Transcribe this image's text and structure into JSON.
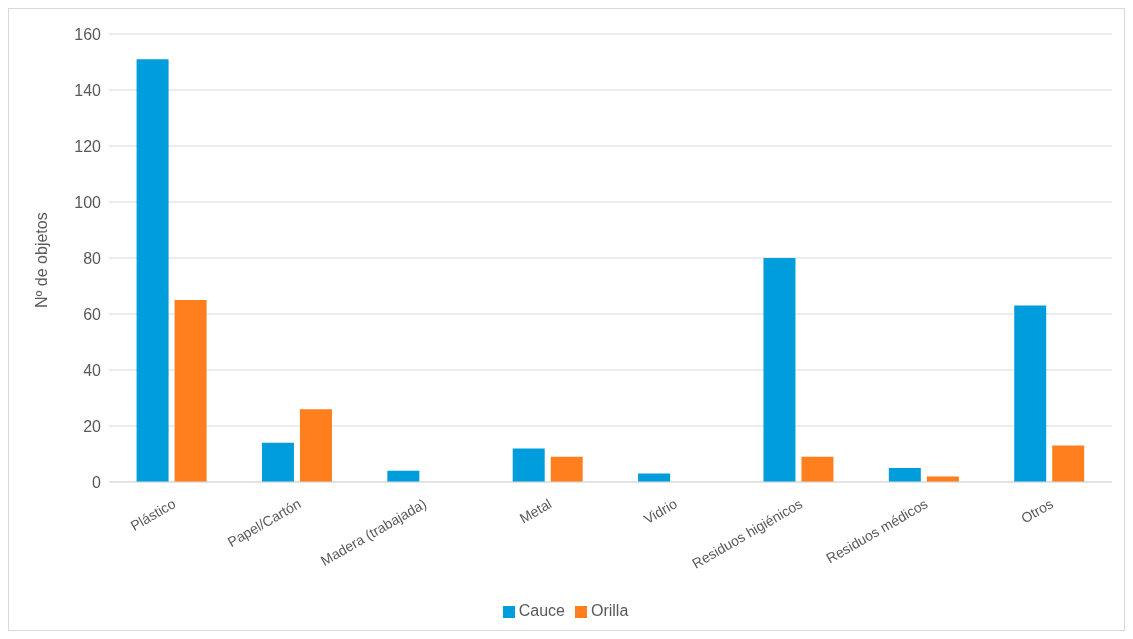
{
  "chart_data": {
    "type": "bar",
    "ylabel": "Nº de objetos",
    "categories": [
      "Plástico",
      "Papel/Cartón",
      "Madera (trabajada)",
      "Metal",
      "Vidrio",
      "Residuos higiénicos",
      "Residuos médicos",
      "Otros"
    ],
    "series": [
      {
        "name": "Cauce",
        "color": "#009ddc",
        "values": [
          151,
          14,
          4,
          12,
          3,
          80,
          5,
          63
        ]
      },
      {
        "name": "Orilla",
        "color": "#ff7f1f",
        "values": [
          65,
          26,
          0,
          9,
          0,
          9,
          2,
          13
        ]
      }
    ],
    "ylim": [
      0,
      160
    ],
    "yticks": [
      0,
      20,
      40,
      60,
      80,
      100,
      120,
      140,
      160
    ],
    "grid": "y",
    "legend": "bottom"
  }
}
